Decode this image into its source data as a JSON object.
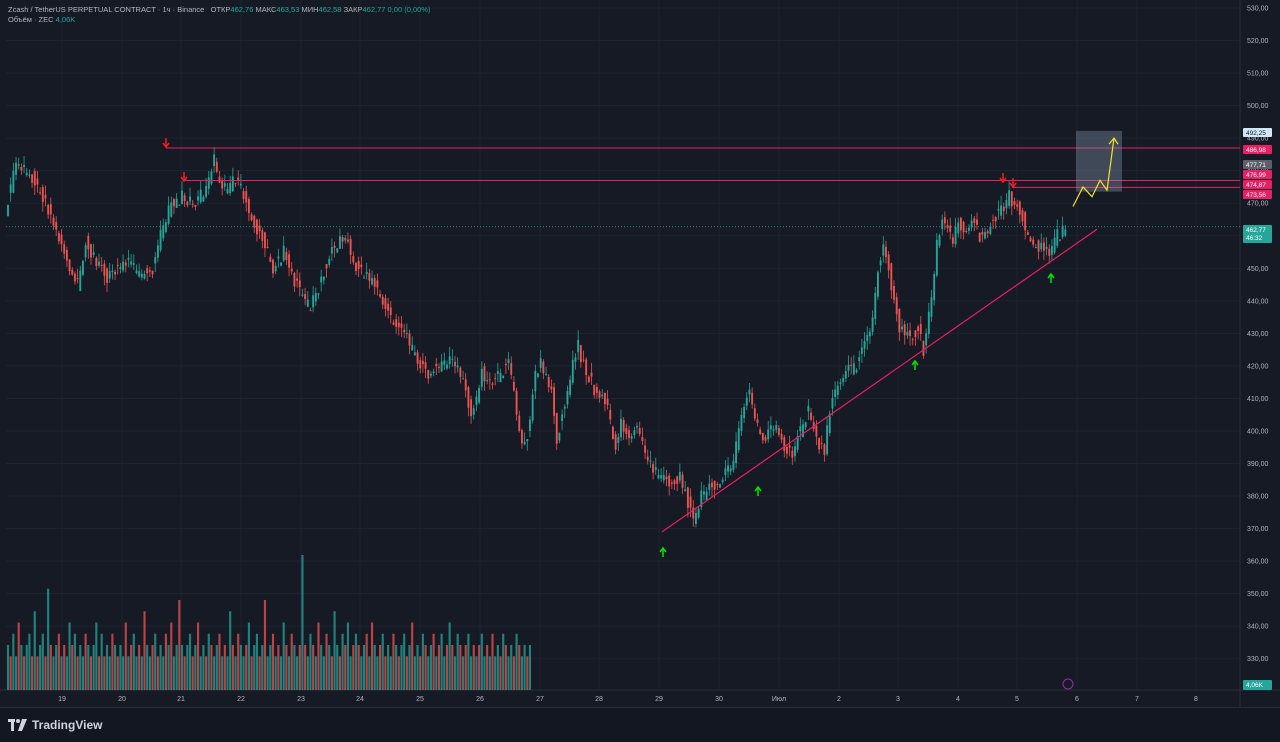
{
  "header": {
    "symbol": "Zcash / TetherUS PERPETUAL CONTRACT · 1ч · Binance",
    "open_label": "ОТКР",
    "open": "462,76",
    "high_label": "МАКС",
    "high": "463,53",
    "low_label": "МИН",
    "low": "462,58",
    "close_label": "ЗАКР",
    "close": "462,77",
    "change": "0,00 (0,00%)",
    "volume_label": "Объём · ZEC",
    "volume": "4,06K"
  },
  "price_labels": {
    "current": "462,77",
    "countdown": "46:32",
    "volume_badge": "4,06K",
    "levels": [
      "492,25",
      "486,98",
      "477,71",
      "476,99",
      "474,87",
      "473,56"
    ]
  },
  "colors": {
    "bg": "#161a25",
    "grid": "#1f2330",
    "up": "#26a69a",
    "down": "#ef5350",
    "level_line": "#e91e63",
    "trend_line": "#e91e63",
    "projection": "#f5e22a",
    "up_arrow": "#00e600",
    "down_arrow": "#ff1a1a",
    "target_box": "#8fa3b8"
  },
  "chart_data": {
    "type": "candlestick",
    "ylim": [
      325,
      530
    ],
    "y_ticks": [
      "530,00",
      "520,00",
      "510,00",
      "500,00",
      "490,00",
      "480,00",
      "470,00",
      "450,00",
      "440,00",
      "430,00",
      "420,00",
      "410,00",
      "400,00",
      "390,00",
      "380,00",
      "370,00",
      "360,00",
      "350,00",
      "340,00",
      "330,00"
    ],
    "x_ticks": [
      "19",
      "20",
      "21",
      "22",
      "23",
      "24",
      "25",
      "26",
      "27",
      "28",
      "29",
      "30",
      "Июл",
      "2",
      "3",
      "4",
      "5",
      "6",
      "7",
      "8"
    ],
    "path": [
      [
        0,
        468
      ],
      [
        4,
        482
      ],
      [
        10,
        478
      ],
      [
        16,
        468
      ],
      [
        22,
        455
      ],
      [
        27,
        445
      ],
      [
        30,
        458
      ],
      [
        34,
        452
      ],
      [
        38,
        447
      ],
      [
        42,
        450
      ],
      [
        46,
        452
      ],
      [
        50,
        448
      ],
      [
        55,
        450
      ],
      [
        58,
        460
      ],
      [
        62,
        470
      ],
      [
        66,
        472
      ],
      [
        70,
        470
      ],
      [
        75,
        474
      ],
      [
        78,
        484
      ],
      [
        80,
        476
      ],
      [
        83,
        474
      ],
      [
        86,
        478
      ],
      [
        90,
        470
      ],
      [
        94,
        462
      ],
      [
        97,
        458
      ],
      [
        100,
        450
      ],
      [
        104,
        455
      ],
      [
        108,
        446
      ],
      [
        112,
        440
      ],
      [
        114,
        438
      ],
      [
        117,
        444
      ],
      [
        120,
        452
      ],
      [
        124,
        458
      ],
      [
        127,
        460
      ],
      [
        130,
        452
      ],
      [
        134,
        448
      ],
      [
        138,
        445
      ],
      [
        142,
        438
      ],
      [
        146,
        432
      ],
      [
        149,
        430
      ],
      [
        152,
        425
      ],
      [
        155,
        420
      ],
      [
        158,
        418
      ],
      [
        162,
        420
      ],
      [
        166,
        421
      ],
      [
        170,
        418
      ],
      [
        172,
        412
      ],
      [
        174,
        405
      ],
      [
        176,
        410
      ],
      [
        178,
        418
      ],
      [
        180,
        414
      ],
      [
        184,
        417
      ],
      [
        188,
        421
      ],
      [
        190,
        412
      ],
      [
        192,
        400
      ],
      [
        194,
        395
      ],
      [
        196,
        404
      ],
      [
        198,
        418
      ],
      [
        200,
        421
      ],
      [
        204,
        412
      ],
      [
        206,
        398
      ],
      [
        208,
        405
      ],
      [
        210,
        412
      ],
      [
        212,
        420
      ],
      [
        214,
        426
      ],
      [
        216,
        420
      ],
      [
        220,
        413
      ],
      [
        224,
        410
      ],
      [
        226,
        403
      ],
      [
        228,
        395
      ],
      [
        230,
        402
      ],
      [
        233,
        398
      ],
      [
        236,
        402
      ],
      [
        238,
        395
      ],
      [
        240,
        390
      ],
      [
        244,
        386
      ],
      [
        248,
        384
      ],
      [
        252,
        386
      ],
      [
        255,
        378
      ],
      [
        257,
        372
      ],
      [
        260,
        380
      ],
      [
        264,
        383
      ],
      [
        268,
        386
      ],
      [
        272,
        390
      ],
      [
        274,
        400
      ],
      [
        276,
        408
      ],
      [
        278,
        412
      ],
      [
        280,
        404
      ],
      [
        282,
        400
      ],
      [
        284,
        398
      ],
      [
        288,
        402
      ],
      [
        291,
        395
      ],
      [
        294,
        392
      ],
      [
        296,
        398
      ],
      [
        298,
        402
      ],
      [
        300,
        407
      ],
      [
        302,
        400
      ],
      [
        304,
        396
      ],
      [
        306,
        394
      ],
      [
        308,
        406
      ],
      [
        311,
        414
      ],
      [
        314,
        418
      ],
      [
        318,
        420
      ],
      [
        320,
        424
      ],
      [
        322,
        428
      ],
      [
        324,
        434
      ],
      [
        326,
        450
      ],
      [
        328,
        456
      ],
      [
        330,
        450
      ],
      [
        332,
        440
      ],
      [
        334,
        432
      ],
      [
        336,
        430
      ],
      [
        338,
        428
      ],
      [
        341,
        432
      ],
      [
        343,
        425
      ],
      [
        346,
        440
      ],
      [
        348,
        458
      ],
      [
        350,
        465
      ],
      [
        352,
        462
      ],
      [
        354,
        458
      ],
      [
        356,
        464
      ],
      [
        359,
        462
      ],
      [
        362,
        465
      ],
      [
        364,
        460
      ],
      [
        367,
        462
      ],
      [
        370,
        466
      ],
      [
        373,
        468
      ],
      [
        375,
        472
      ],
      [
        377,
        470
      ],
      [
        379,
        468
      ],
      [
        381,
        463
      ],
      [
        384,
        458
      ],
      [
        387,
        456
      ],
      [
        390,
        454
      ],
      [
        393,
        460
      ],
      [
        396,
        462
      ]
    ],
    "volume": [
      4,
      3,
      5,
      3,
      6,
      4,
      3,
      4,
      5,
      3,
      7,
      3,
      4,
      5,
      3,
      9,
      4,
      3,
      4,
      5,
      3,
      4,
      3,
      6,
      4,
      5,
      3,
      4,
      3,
      5,
      4,
      3,
      4,
      6,
      3,
      5,
      3,
      4,
      3,
      5,
      4,
      3,
      4,
      3,
      6,
      3,
      4,
      5,
      3,
      4,
      3,
      7,
      4,
      3,
      4,
      5,
      3,
      4,
      3,
      5,
      4,
      6,
      3,
      4,
      8,
      4,
      3,
      4,
      5,
      3,
      4,
      6,
      3,
      4,
      3,
      5,
      4,
      3,
      4,
      5,
      3,
      4,
      3,
      7,
      4,
      3,
      5,
      4,
      3,
      4,
      6,
      3,
      4,
      5,
      3,
      4,
      8,
      3,
      4,
      5,
      3,
      4,
      3,
      6,
      4,
      3,
      5,
      4,
      3,
      4,
      12,
      4,
      3,
      5,
      4,
      3,
      6,
      4,
      3,
      5,
      4,
      3,
      7,
      4,
      3,
      5,
      4,
      6,
      3,
      4,
      5,
      4,
      3,
      4,
      5,
      3,
      6,
      4,
      3,
      4,
      5,
      3,
      4,
      3,
      5,
      4,
      3,
      4,
      5,
      3,
      4,
      6,
      3,
      4,
      3,
      5,
      4,
      3,
      4,
      5,
      3,
      4,
      5,
      3,
      4,
      6,
      4,
      3,
      5,
      4,
      3,
      4,
      5,
      3,
      4,
      3,
      4,
      5,
      3,
      4,
      3,
      5,
      3,
      4,
      3,
      5,
      4,
      3,
      4,
      3,
      5,
      4,
      3,
      4,
      3,
      4
    ]
  }
}
